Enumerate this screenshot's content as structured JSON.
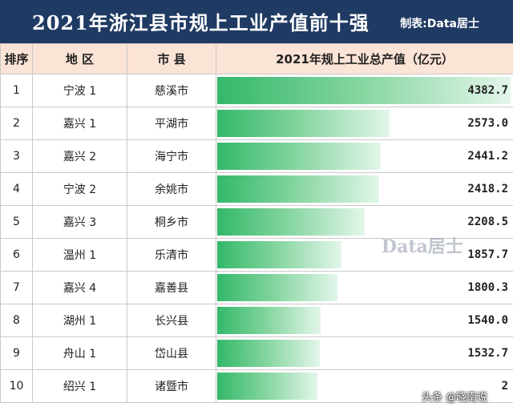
{
  "header": {
    "title": "2021年浙江县市规上工业产值前十强",
    "credit": "制表:Data居士"
  },
  "chart_data": {
    "type": "table",
    "columns": [
      "排序",
      "地 区",
      "市 县",
      "2021年规上工业总产值（亿元）"
    ],
    "rows": [
      {
        "rank": "1",
        "region": "宁波 1",
        "county": "慈溪市",
        "value": 4382.7,
        "value_text": "4382.7"
      },
      {
        "rank": "2",
        "region": "嘉兴 1",
        "county": "平湖市",
        "value": 2573.0,
        "value_text": "2573.0"
      },
      {
        "rank": "3",
        "region": "嘉兴 2",
        "county": "海宁市",
        "value": 2441.2,
        "value_text": "2441.2"
      },
      {
        "rank": "4",
        "region": "宁波 2",
        "county": "余姚市",
        "value": 2418.2,
        "value_text": "2418.2"
      },
      {
        "rank": "5",
        "region": "嘉兴 3",
        "county": "桐乡市",
        "value": 2208.5,
        "value_text": "2208.5"
      },
      {
        "rank": "6",
        "region": "温州 1",
        "county": "乐清市",
        "value": 1857.7,
        "value_text": "1857.7"
      },
      {
        "rank": "7",
        "region": "嘉兴 4",
        "county": "嘉善县",
        "value": 1800.3,
        "value_text": "1800.3"
      },
      {
        "rank": "8",
        "region": "湖州 1",
        "county": "长兴县",
        "value": 1540.0,
        "value_text": "1540.0"
      },
      {
        "rank": "9",
        "region": "舟山 1",
        "county": "岱山县",
        "value": 1532.7,
        "value_text": "1532.7"
      },
      {
        "rank": "10",
        "region": "绍兴 1",
        "county": "诸暨市",
        "value": null,
        "value_text": "2"
      }
    ],
    "bar_color": "#34b86a"
  },
  "watermarks": {
    "center": "Data居士",
    "corner": "头条 @晓南说"
  }
}
